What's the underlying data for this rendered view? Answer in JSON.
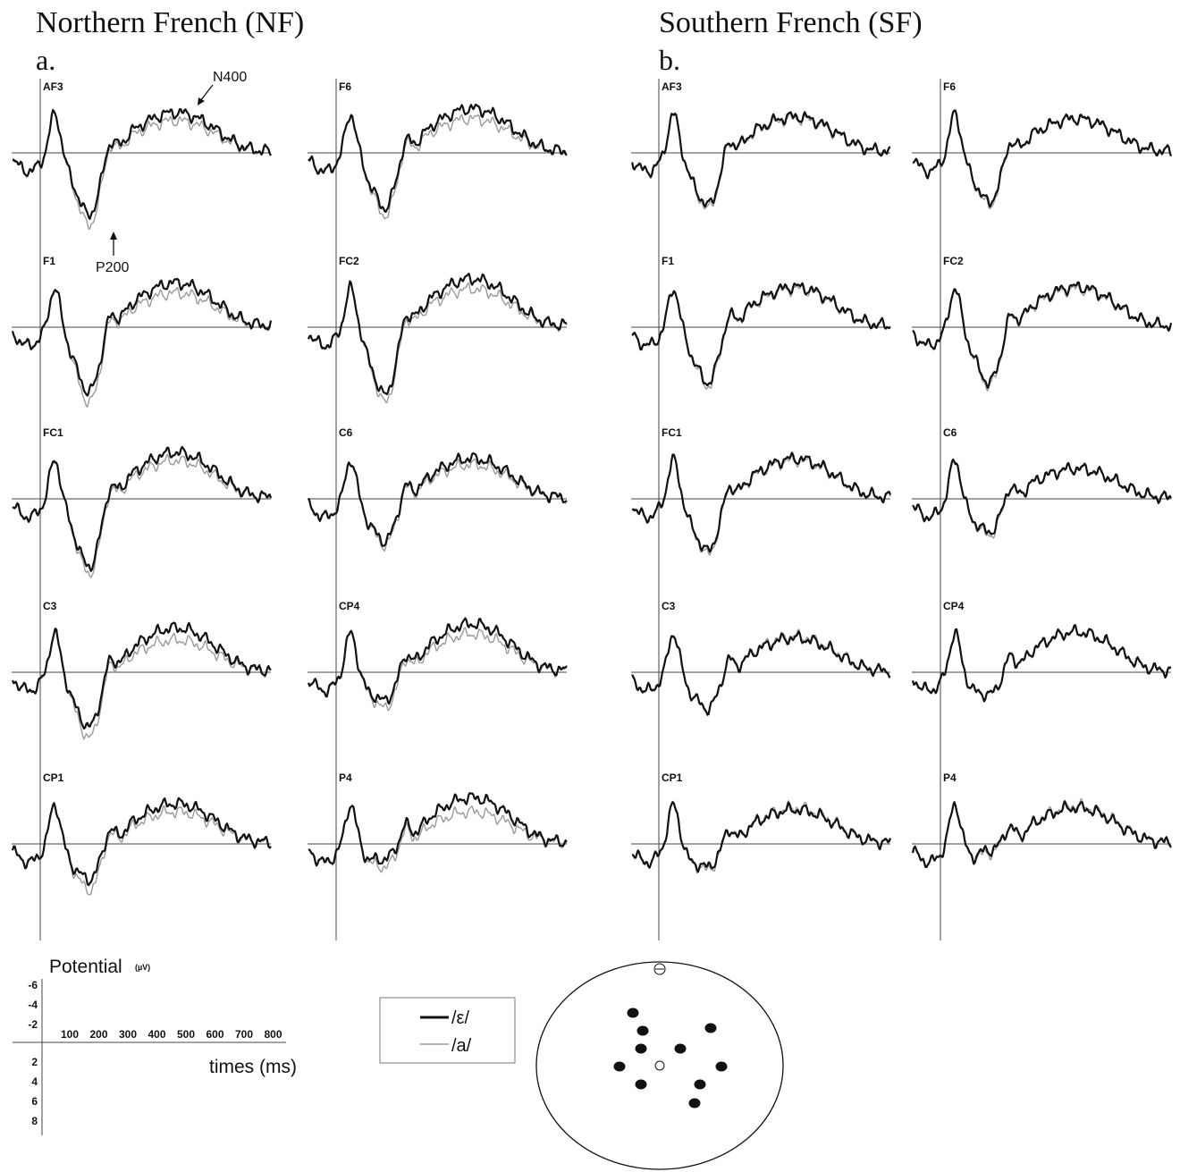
{
  "groups": [
    {
      "title": "Northern French (NF)",
      "letter": "a.",
      "panels": [
        {
          "electrode": "AF3",
          "amp_e": 1.0,
          "amp_a": 1.15,
          "late_e": 1.0,
          "late_a": 0.8
        },
        {
          "electrode": "F6",
          "amp_e": 0.9,
          "amp_a": 1.0,
          "late_e": 1.1,
          "late_a": 0.85
        },
        {
          "electrode": "F1",
          "amp_e": 1.05,
          "amp_a": 1.2,
          "late_e": 1.1,
          "late_a": 0.85
        },
        {
          "electrode": "FC2",
          "amp_e": 1.1,
          "amp_a": 1.2,
          "late_e": 1.2,
          "late_a": 0.95
        },
        {
          "electrode": "FC1",
          "amp_e": 1.1,
          "amp_a": 1.2,
          "late_e": 1.15,
          "late_a": 0.95
        },
        {
          "electrode": "C6",
          "amp_e": 0.7,
          "amp_a": 0.75,
          "late_e": 1.0,
          "late_a": 0.85
        },
        {
          "electrode": "C3",
          "amp_e": 0.9,
          "amp_a": 1.05,
          "late_e": 1.1,
          "late_a": 0.8
        },
        {
          "electrode": "CP4",
          "amp_e": 0.5,
          "amp_a": 0.6,
          "late_e": 1.2,
          "late_a": 0.95
        },
        {
          "electrode": "CP1",
          "amp_e": 0.6,
          "amp_a": 0.75,
          "late_e": 1.0,
          "late_a": 0.8
        },
        {
          "electrode": "P4",
          "amp_e": 0.3,
          "amp_a": 0.4,
          "late_e": 1.15,
          "late_a": 0.8
        }
      ]
    },
    {
      "title": "Southern French (SF)",
      "letter": "b.",
      "panels": [
        {
          "electrode": "AF3",
          "amp_e": 0.85,
          "amp_a": 0.9,
          "late_e": 0.9,
          "late_a": 0.85
        },
        {
          "electrode": "F6",
          "amp_e": 0.8,
          "amp_a": 0.85,
          "late_e": 0.85,
          "late_a": 0.85
        },
        {
          "electrode": "F1",
          "amp_e": 0.9,
          "amp_a": 0.95,
          "late_e": 1.0,
          "late_a": 0.95
        },
        {
          "electrode": "FC2",
          "amp_e": 0.9,
          "amp_a": 0.95,
          "late_e": 1.0,
          "late_a": 0.95
        },
        {
          "electrode": "FC1",
          "amp_e": 0.85,
          "amp_a": 0.9,
          "late_e": 1.0,
          "late_a": 0.95
        },
        {
          "electrode": "C6",
          "amp_e": 0.55,
          "amp_a": 0.6,
          "late_e": 0.75,
          "late_a": 0.75
        },
        {
          "electrode": "C3",
          "amp_e": 0.6,
          "amp_a": 0.6,
          "late_e": 0.85,
          "late_a": 0.9
        },
        {
          "electrode": "CP4",
          "amp_e": 0.4,
          "amp_a": 0.4,
          "late_e": 1.0,
          "late_a": 1.0
        },
        {
          "electrode": "CP1",
          "amp_e": 0.4,
          "amp_a": 0.45,
          "late_e": 0.85,
          "late_a": 0.9
        },
        {
          "electrode": "P4",
          "amp_e": 0.15,
          "amp_a": 0.2,
          "late_e": 0.9,
          "late_a": 0.95
        }
      ]
    }
  ],
  "annotations": {
    "n400": "N400",
    "p200": "P200"
  },
  "scale": {
    "title": "Potential",
    "unit": "(µV)",
    "y_ticks_negative": [
      "-6",
      "-4",
      "-2"
    ],
    "y_ticks_positive": [
      "2",
      "4",
      "6",
      "8"
    ],
    "x_ticks": [
      "100",
      "200",
      "300",
      "400",
      "500",
      "600",
      "700",
      "800"
    ],
    "x_label": "times (ms)"
  },
  "legend": [
    {
      "label": "/ε/",
      "color": "#111111",
      "style": "thick"
    },
    {
      "label": "/a/",
      "color": "#9a9a9a",
      "style": "thin"
    }
  ],
  "chart_data": {
    "type": "line",
    "description_axes": "ERP waveforms, time 0–800 ms, negative up",
    "x_range_ms": [
      0,
      800
    ],
    "y_range_uV": [
      -6,
      8
    ],
    "series": [
      {
        "name": "/ε/",
        "color": "#111111"
      },
      {
        "name": "/a/",
        "color": "#9a9a9a"
      }
    ],
    "electrodes": [
      "AF3",
      "F6",
      "F1",
      "FC2",
      "FC1",
      "C6",
      "C3",
      "CP4",
      "CP1",
      "P4"
    ],
    "groups": [
      "Northern French (NF)",
      "Southern French (SF)"
    ]
  }
}
